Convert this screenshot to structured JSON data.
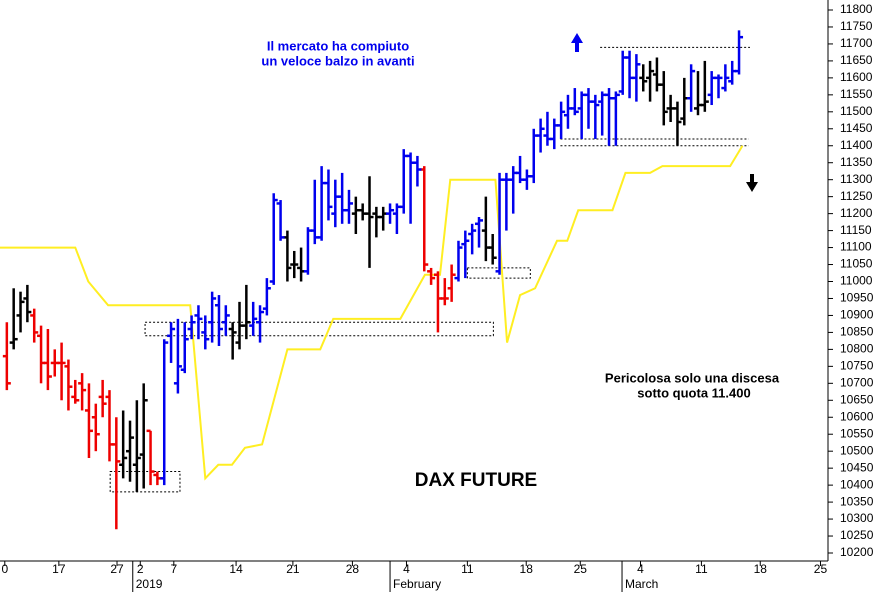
{
  "chart_data": {
    "type": "ohlc",
    "title": "DAX FUTURE",
    "notes": {
      "top": [
        "Il mercato ha compiuto",
        "un veloce balzo in avanti"
      ],
      "bottom": [
        "Pericolosa solo una discesa",
        "sotto quota 11.400"
      ]
    },
    "xlim": [
      0,
      121
    ],
    "ylim": [
      10200,
      11800
    ],
    "yticks": [
      10200,
      10250,
      10300,
      10350,
      10400,
      10450,
      10500,
      10550,
      10600,
      10650,
      10700,
      10750,
      10800,
      10850,
      10900,
      10950,
      11000,
      11050,
      11100,
      11150,
      11200,
      11250,
      11300,
      11350,
      11400,
      11450,
      11500,
      11550,
      11600,
      11650,
      11700,
      11750,
      11800
    ],
    "xticks": [
      {
        "value": 0.7,
        "label": "0"
      },
      {
        "value": 8.6,
        "label": "17"
      },
      {
        "value": 17.1,
        "label": "27"
      },
      {
        "value": 20.5,
        "label": "2"
      },
      {
        "value": 25.4,
        "label": "7"
      },
      {
        "value": 34.5,
        "label": "14"
      },
      {
        "value": 42.8,
        "label": "21"
      },
      {
        "value": 51.5,
        "label": "28"
      },
      {
        "value": 59.4,
        "label": "4"
      },
      {
        "value": 68.3,
        "label": "11"
      },
      {
        "value": 76.9,
        "label": "18"
      },
      {
        "value": 84.8,
        "label": "25"
      },
      {
        "value": 93.6,
        "label": "4"
      },
      {
        "value": 102.5,
        "label": "11"
      },
      {
        "value": 111.1,
        "label": "18"
      },
      {
        "value": 119.9,
        "label": "25"
      }
    ],
    "x_groups": [
      {
        "label": "2019",
        "x": 19.4
      },
      {
        "label": "February",
        "x": 57
      },
      {
        "label": "March",
        "x": 90.9
      }
    ],
    "series": [
      {
        "color": "#ee0000",
        "x": [
          1,
          5,
          6,
          7,
          8,
          9,
          10,
          11,
          12,
          13,
          14,
          15,
          16,
          17,
          22,
          23,
          62,
          63,
          64,
          65,
          66
        ],
        "open": [
          10780,
          10900,
          10840,
          10760,
          10760,
          10760,
          10750,
          10660,
          10700,
          10620,
          10600,
          10660,
          10660,
          10520,
          10560,
          10430,
          11330,
          11030,
          11020,
          10950,
          10980
        ],
        "high": [
          10880,
          10920,
          10870,
          10860,
          10800,
          10820,
          10770,
          10710,
          10730,
          10700,
          10640,
          10710,
          10680,
          10600,
          10560,
          10440,
          11340,
          11040,
          11030,
          11010,
          11050
        ],
        "low": [
          10680,
          10820,
          10700,
          10680,
          10720,
          10650,
          10620,
          10640,
          10620,
          10480,
          10500,
          10600,
          10470,
          10270,
          10400,
          10400,
          11030,
          10990,
          10850,
          10930,
          10940
        ],
        "close": [
          10700,
          10850,
          10760,
          10720,
          10760,
          10760,
          10690,
          10650,
          10680,
          10560,
          10550,
          10640,
          10520,
          10470,
          10440,
          10420,
          11050,
          11010,
          10950,
          10950,
          11020
        ]
      },
      {
        "color": "#000000",
        "x": [
          2,
          3,
          4,
          18,
          19,
          20,
          21,
          34,
          35,
          36,
          42,
          43,
          44,
          52,
          53,
          54,
          55,
          56,
          71,
          72,
          94,
          95,
          96,
          97,
          98,
          99,
          100,
          102,
          103
        ],
        "open": [
          10820,
          10900,
          10950,
          10460,
          10500,
          10460,
          10490,
          10860,
          10820,
          10870,
          11130,
          11050,
          11040,
          11200,
          11210,
          11200,
          11200,
          11190,
          11150,
          11100,
          11600,
          11600,
          11610,
          11580,
          11510,
          11510,
          11480,
          11510,
          11520
        ],
        "high": [
          10980,
          10970,
          10990,
          10620,
          10590,
          10650,
          10700,
          10880,
          10940,
          10990,
          11150,
          11090,
          11100,
          11250,
          11230,
          11310,
          11220,
          11220,
          11250,
          11140,
          11640,
          11650,
          11660,
          11620,
          11550,
          11530,
          11600,
          11620,
          11650
        ],
        "low": [
          10800,
          10850,
          10880,
          10420,
          10410,
          10380,
          10390,
          10770,
          10800,
          10830,
          11000,
          11010,
          11000,
          11140,
          11180,
          11040,
          11130,
          11150,
          11060,
          11050,
          11560,
          11530,
          11560,
          11460,
          11470,
          11400,
          11460,
          11490,
          11500
        ],
        "close": [
          10830,
          10940,
          10910,
          10480,
          10540,
          10480,
          10650,
          10850,
          10870,
          10880,
          11040,
          11050,
          11030,
          11210,
          11200,
          11190,
          11190,
          11200,
          11100,
          11070,
          11590,
          11620,
          11580,
          11500,
          11510,
          11470,
          11540,
          11520,
          11530
        ]
      },
      {
        "color": "#0000ee",
        "x": [
          24,
          25,
          26,
          27,
          28,
          29,
          30,
          31,
          32,
          33,
          37,
          38,
          39,
          40,
          41,
          45,
          46,
          47,
          48,
          49,
          50,
          51,
          57,
          58,
          59,
          60,
          61,
          67,
          68,
          69,
          70,
          73,
          74,
          75,
          76,
          77,
          78,
          79,
          80,
          81,
          82,
          83,
          84,
          85,
          86,
          87,
          88,
          89,
          90,
          91,
          92,
          93,
          101,
          104,
          105,
          106,
          107,
          108
        ],
        "open": [
          10420,
          10840,
          10700,
          10740,
          10860,
          10900,
          10850,
          10880,
          10930,
          10880,
          10870,
          10880,
          10920,
          11000,
          11230,
          11030,
          11150,
          11130,
          11290,
          11200,
          11250,
          11210,
          11200,
          11200,
          11220,
          11370,
          11350,
          11010,
          11110,
          11140,
          11170,
          11030,
          11300,
          11300,
          11320,
          11300,
          11310,
          11430,
          11430,
          11420,
          11460,
          11490,
          11510,
          11510,
          11550,
          11530,
          11530,
          11550,
          11540,
          11560,
          11660,
          11600,
          11540,
          11550,
          11600,
          11570,
          11590,
          11620
        ],
        "high": [
          10830,
          10880,
          10890,
          10880,
          10900,
          10930,
          10900,
          10970,
          10960,
          10930,
          10940,
          10930,
          11010,
          11260,
          11240,
          11160,
          11300,
          11340,
          11330,
          11300,
          11320,
          11270,
          11230,
          11230,
          11390,
          11380,
          11370,
          11120,
          11150,
          11170,
          11190,
          11320,
          11320,
          11340,
          11370,
          11330,
          11450,
          11480,
          11500,
          11480,
          11530,
          11550,
          11570,
          11560,
          11570,
          11550,
          11560,
          11570,
          11560,
          11680,
          11680,
          11670,
          11640,
          11620,
          11610,
          11640,
          11650,
          11740
        ],
        "low": [
          10400,
          10760,
          10670,
          10730,
          10830,
          10830,
          10800,
          10820,
          10810,
          10840,
          10840,
          10820,
          10900,
          10990,
          11120,
          11020,
          11110,
          11120,
          11180,
          11160,
          11170,
          11170,
          11170,
          11140,
          11200,
          11170,
          11280,
          11000,
          11010,
          11080,
          11100,
          11020,
          11150,
          11200,
          11290,
          11270,
          11290,
          11380,
          11400,
          11390,
          11420,
          11450,
          11490,
          11420,
          11450,
          11420,
          11430,
          11400,
          11400,
          11550,
          11540,
          11530,
          11500,
          11520,
          11540,
          11560,
          11580,
          11610
        ],
        "close": [
          10820,
          10860,
          10750,
          10830,
          10880,
          10890,
          10830,
          10950,
          10860,
          10900,
          10890,
          10910,
          10980,
          11240,
          11130,
          11150,
          11130,
          11290,
          11220,
          11250,
          11210,
          11230,
          11210,
          11220,
          11370,
          11350,
          11330,
          11100,
          11120,
          11150,
          11180,
          11300,
          11300,
          11320,
          11300,
          11310,
          11430,
          11450,
          11420,
          11460,
          11500,
          11510,
          11500,
          11550,
          11530,
          11520,
          11550,
          11540,
          11550,
          11660,
          11600,
          11640,
          11620,
          11600,
          11600,
          11600,
          11620,
          11720
        ]
      }
    ],
    "line": {
      "color": "#ffee22",
      "x": [
        0,
        11,
        12.9,
        15.8,
        27.8,
        30,
        31.9,
        33.9,
        35.8,
        38.3,
        42,
        46.8,
        48.7,
        58.5,
        62.1,
        64.3,
        65.8,
        72.4,
        74.1,
        76,
        78.2,
        81.4,
        82.9,
        84.5,
        89.5,
        91.4,
        95,
        96.8,
        106.7,
        108.5
      ],
      "values": [
        11100,
        11100,
        11000,
        10930,
        10930,
        10420,
        10460,
        10460,
        10510,
        10520,
        10800,
        10800,
        10890,
        10890,
        11020,
        11020,
        11300,
        11300,
        10820,
        10960,
        10980,
        11120,
        11120,
        11210,
        11210,
        11320,
        11320,
        11340,
        11340,
        11400
      ]
    },
    "boxes": [
      {
        "x": [
          16.1,
          26.3
        ],
        "y": [
          10380,
          10440
        ]
      },
      {
        "x": [
          21.2,
          72.1
        ],
        "y": [
          10840,
          10880
        ]
      },
      {
        "x": [
          68.3,
          77.5
        ],
        "y": [
          11010,
          11040
        ]
      }
    ],
    "levels": [
      {
        "x": [
          87.7,
          109.6
        ],
        "y": 11690
      },
      {
        "x": [
          81.9,
          109.4
        ],
        "y": 11420
      },
      {
        "x": [
          81.9,
          109.4
        ],
        "y": 11400
      }
    ]
  }
}
